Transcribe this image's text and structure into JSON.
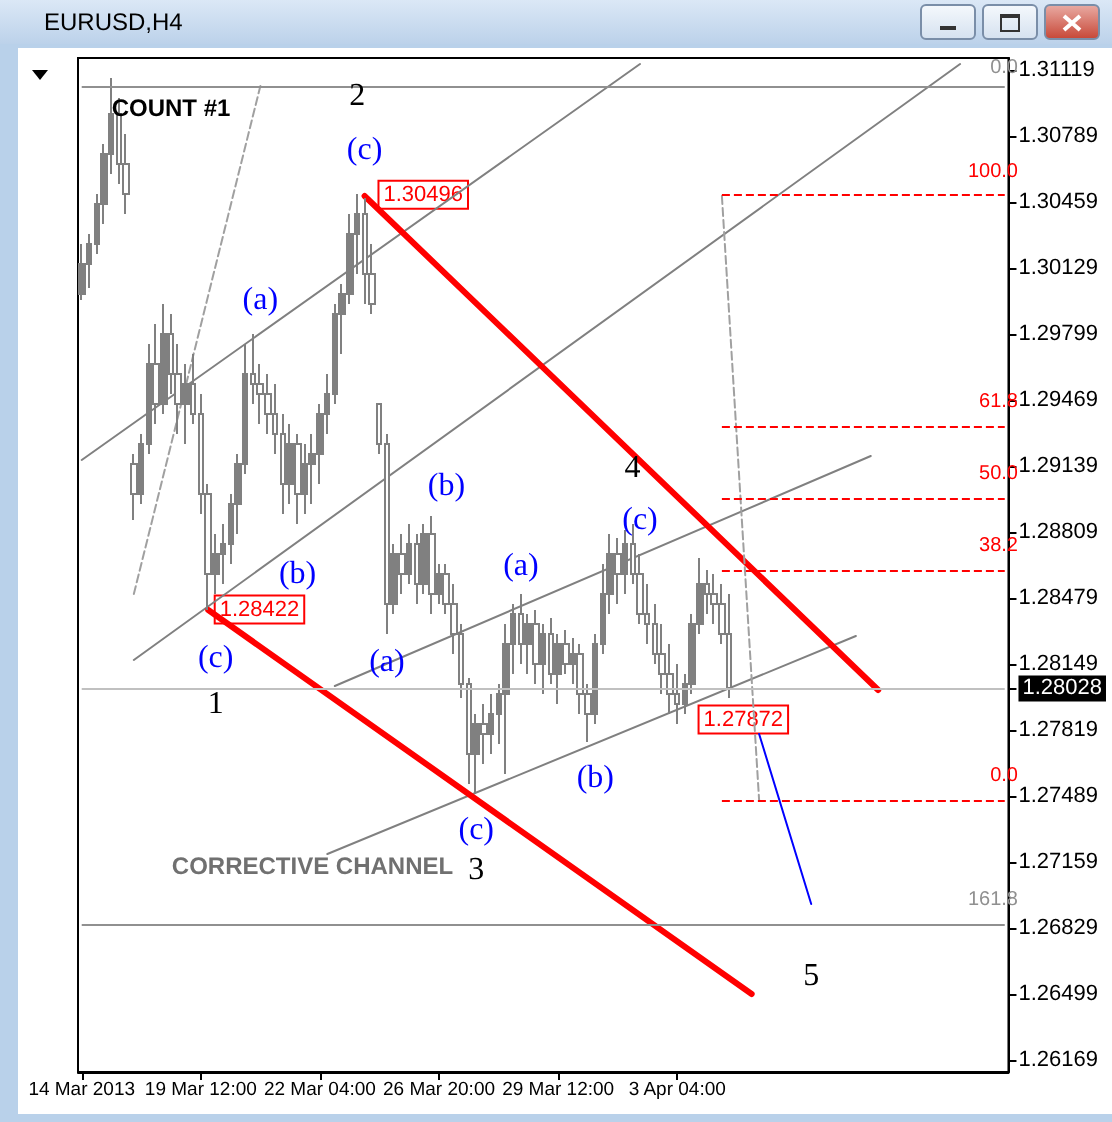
{
  "chart_data": {
    "type": "candlestick",
    "title": "EURUSD,H4",
    "color": "#808080",
    "categories": [
      "14 Mar 2013",
      null,
      null,
      null,
      null,
      null,
      null,
      null,
      null,
      null,
      null,
      null,
      null,
      null,
      null,
      null,
      "19 Mar 12:00",
      null,
      null,
      null,
      null,
      null,
      null,
      null,
      null,
      null,
      null,
      null,
      null,
      null,
      null,
      null,
      "22 Mar 04:00",
      null,
      null,
      null,
      null,
      null,
      null,
      null,
      null,
      null,
      null,
      null,
      null,
      null,
      null,
      null,
      "26 Mar 20:00",
      null,
      null,
      null,
      null,
      null,
      null,
      null,
      null,
      null,
      null,
      null,
      null,
      null,
      null,
      null,
      "29 Mar 12:00",
      null,
      null,
      null,
      null,
      null,
      null,
      null,
      null,
      null,
      null,
      null,
      null,
      null,
      null,
      null,
      "3 Apr 04:00",
      null,
      null,
      null,
      null,
      null,
      null,
      null,
      null,
      null,
      null,
      null,
      null,
      null,
      null,
      null,
      null,
      null,
      null,
      null,
      null,
      null,
      null,
      null,
      null,
      null,
      null,
      null,
      null,
      null,
      null,
      null,
      null,
      null,
      null,
      null,
      null,
      null,
      null,
      null,
      null,
      null,
      null,
      null,
      null
    ],
    "ohlc": [
      [
        1.3,
        1.3025,
        1.2997,
        1.3015
      ],
      [
        1.3015,
        1.303,
        1.3003,
        1.3025
      ],
      [
        1.3025,
        1.305,
        1.302,
        1.3045
      ],
      [
        1.3045,
        1.3075,
        1.3035,
        1.307
      ],
      [
        1.307,
        1.3108,
        1.306,
        1.309
      ],
      [
        1.309,
        1.3098,
        1.3055,
        1.3065
      ],
      [
        1.3065,
        1.308,
        1.304,
        1.305
      ],
      [
        1.2915,
        1.292,
        1.2887,
        1.29
      ],
      [
        1.29,
        1.293,
        1.2895,
        1.2925
      ],
      [
        1.2925,
        1.2975,
        1.292,
        1.2965
      ],
      [
        1.2965,
        1.2985,
        1.2935,
        1.2945
      ],
      [
        1.2945,
        1.2995,
        1.294,
        1.298
      ],
      [
        1.298,
        1.299,
        1.295,
        1.296
      ],
      [
        1.296,
        1.2975,
        1.293,
        1.2945
      ],
      [
        1.2945,
        1.2965,
        1.2925,
        1.2955
      ],
      [
        1.2955,
        1.297,
        1.2935,
        1.294
      ],
      [
        1.294,
        1.295,
        1.289,
        1.29
      ],
      [
        1.29,
        1.2905,
        1.2842,
        1.286
      ],
      [
        1.286,
        1.288,
        1.285,
        1.287
      ],
      [
        1.287,
        1.2885,
        1.2855,
        1.2875
      ],
      [
        1.2875,
        1.29,
        1.2865,
        1.2895
      ],
      [
        1.2895,
        1.292,
        1.288,
        1.2915
      ],
      [
        1.2915,
        1.2975,
        1.291,
        1.296
      ],
      [
        1.296,
        1.298,
        1.2945,
        1.2955
      ],
      [
        1.2955,
        1.2965,
        1.2935,
        1.295
      ],
      [
        1.295,
        1.296,
        1.293,
        1.294
      ],
      [
        1.294,
        1.2955,
        1.292,
        1.293
      ],
      [
        1.293,
        1.294,
        1.289,
        1.2905
      ],
      [
        1.2905,
        1.2935,
        1.2895,
        1.2925
      ],
      [
        1.2925,
        1.293,
        1.2885,
        1.29
      ],
      [
        1.29,
        1.2925,
        1.289,
        1.2915
      ],
      [
        1.2915,
        1.293,
        1.2895,
        1.292
      ],
      [
        1.292,
        1.2945,
        1.2905,
        1.294
      ],
      [
        1.294,
        1.296,
        1.293,
        1.295
      ],
      [
        1.295,
        1.2995,
        1.2945,
        1.299
      ],
      [
        1.299,
        1.3005,
        1.297,
        1.3
      ],
      [
        1.3,
        1.304,
        1.2995,
        1.303
      ],
      [
        1.303,
        1.305,
        1.301,
        1.304
      ],
      [
        1.304,
        1.3048,
        1.2995,
        1.301
      ],
      [
        1.301,
        1.3025,
        1.299,
        1.2995
      ],
      [
        1.2945,
        1.2945,
        1.292,
        1.2925
      ],
      [
        1.2925,
        1.293,
        1.283,
        1.2845
      ],
      [
        1.2845,
        1.2875,
        1.284,
        1.287
      ],
      [
        1.287,
        1.288,
        1.285,
        1.286
      ],
      [
        1.286,
        1.2885,
        1.2855,
        1.2875
      ],
      [
        1.2875,
        1.288,
        1.2845,
        1.2855
      ],
      [
        1.2855,
        1.2885,
        1.285,
        1.288
      ],
      [
        1.288,
        1.2889,
        1.284,
        1.285
      ],
      [
        1.285,
        1.2865,
        1.2845,
        1.286
      ],
      [
        1.286,
        1.2865,
        1.284,
        1.2845
      ],
      [
        1.2845,
        1.2855,
        1.282,
        1.283
      ],
      [
        1.283,
        1.2835,
        1.2798,
        1.2805
      ],
      [
        1.2805,
        1.2808,
        1.2755,
        1.277
      ],
      [
        1.277,
        1.279,
        1.275,
        1.2785
      ],
      [
        1.2785,
        1.2795,
        1.2765,
        1.278
      ],
      [
        1.278,
        1.28,
        1.277,
        1.279
      ],
      [
        1.279,
        1.2805,
        1.2775,
        1.28
      ],
      [
        1.28,
        1.2835,
        1.276,
        1.2825
      ],
      [
        1.2825,
        1.2845,
        1.281,
        1.284
      ],
      [
        1.284,
        1.285,
        1.2815,
        1.2825
      ],
      [
        1.2825,
        1.284,
        1.281,
        1.2835
      ],
      [
        1.2835,
        1.2842,
        1.2805,
        1.2815
      ],
      [
        1.2815,
        1.2835,
        1.28,
        1.283
      ],
      [
        1.283,
        1.2838,
        1.2805,
        1.281
      ],
      [
        1.281,
        1.283,
        1.2795,
        1.2825
      ],
      [
        1.2825,
        1.2832,
        1.281,
        1.2815
      ],
      [
        1.2815,
        1.2828,
        1.2805,
        1.282
      ],
      [
        1.282,
        1.2825,
        1.279,
        1.28
      ],
      [
        1.28,
        1.2805,
        1.2776,
        1.279
      ],
      [
        1.279,
        1.283,
        1.2785,
        1.2825
      ],
      [
        1.2825,
        1.2865,
        1.282,
        1.285
      ],
      [
        1.285,
        1.288,
        1.284,
        1.287
      ],
      [
        1.287,
        1.2878,
        1.2845,
        1.286
      ],
      [
        1.286,
        1.2882,
        1.285,
        1.2875
      ],
      [
        1.2875,
        1.2885,
        1.2855,
        1.286
      ],
      [
        1.286,
        1.287,
        1.2835,
        1.284
      ],
      [
        1.284,
        1.2855,
        1.2825,
        1.2835
      ],
      [
        1.2835,
        1.2845,
        1.2815,
        1.282
      ],
      [
        1.282,
        1.2835,
        1.28,
        1.281
      ],
      [
        1.281,
        1.2825,
        1.279,
        1.28
      ],
      [
        1.28,
        1.2815,
        1.2785,
        1.2795
      ],
      [
        1.2795,
        1.281,
        1.279,
        1.2805
      ],
      [
        1.2805,
        1.284,
        1.28,
        1.2835
      ],
      [
        1.2835,
        1.2868,
        1.283,
        1.2855
      ],
      [
        1.2855,
        1.2862,
        1.284,
        1.285
      ],
      [
        1.285,
        1.286,
        1.2835,
        1.2845
      ],
      [
        1.2845,
        1.2855,
        1.2825,
        1.283
      ],
      [
        1.283,
        1.285,
        1.2798,
        1.2803
      ],
      null,
      null,
      null,
      null,
      null,
      null,
      null,
      null,
      null,
      null,
      null,
      null,
      null,
      null,
      null,
      null,
      null,
      null,
      null,
      null,
      null,
      null,
      null,
      null,
      null,
      null,
      null,
      null,
      null,
      null,
      null,
      null,
      null,
      null,
      null,
      null,
      null
    ],
    "series": [
      {
        "type": "line",
        "color": "#808080",
        "line_style": "solid",
        "values": [
          1.2917,
          null,
          null,
          null,
          null,
          null,
          null,
          null,
          null,
          null,
          null,
          null,
          null,
          null,
          null,
          null,
          null,
          null,
          null,
          null,
          null,
          null,
          null,
          null,
          null,
          null,
          null,
          null,
          null,
          null,
          null,
          null,
          null,
          null,
          null,
          null,
          null,
          null,
          null,
          null,
          null,
          null,
          null,
          null,
          null,
          null,
          null,
          null,
          null,
          null,
          null,
          null,
          null,
          null,
          null,
          null,
          null,
          null,
          null,
          null,
          null,
          null,
          null,
          null,
          null,
          null,
          null,
          null,
          null,
          null,
          null,
          null,
          null,
          null,
          null,
          1.3115,
          null,
          null,
          null,
          null,
          null,
          null,
          null,
          null,
          null,
          null,
          null,
          null,
          null,
          null,
          null,
          null,
          null,
          null,
          null,
          null,
          null,
          null,
          null,
          null,
          null,
          null,
          null,
          null,
          null,
          null,
          null,
          null,
          null,
          null,
          null,
          null,
          null,
          null,
          null,
          null,
          null,
          null,
          null,
          null,
          null,
          null,
          null,
          null,
          null
        ]
      },
      {
        "type": "line",
        "color": "#808080",
        "line_style": "solid",
        "values": [
          null,
          null,
          null,
          null,
          null,
          null,
          null,
          1.2817,
          null,
          null,
          null,
          null,
          null,
          null,
          null,
          null,
          null,
          null,
          null,
          null,
          null,
          null,
          null,
          null,
          null,
          null,
          null,
          null,
          null,
          null,
          null,
          null,
          null,
          null,
          null,
          null,
          null,
          null,
          null,
          null,
          null,
          null,
          null,
          null,
          null,
          null,
          null,
          null,
          null,
          null,
          null,
          null,
          null,
          null,
          null,
          null,
          null,
          null,
          null,
          null,
          null,
          null,
          null,
          null,
          null,
          null,
          null,
          null,
          null,
          null,
          null,
          null,
          null,
          null,
          null,
          null,
          null,
          null,
          null,
          null,
          null,
          null,
          null,
          null,
          null,
          null,
          null,
          null,
          null,
          null,
          null,
          null,
          null,
          null,
          null,
          null,
          null,
          null,
          null,
          null,
          null,
          null,
          null,
          null,
          null,
          null,
          null,
          null,
          null,
          null,
          null,
          null,
          null,
          null,
          null,
          null,
          null,
          null,
          1.3115,
          null,
          null,
          null,
          null,
          null,
          null
        ]
      },
      {
        "type": "line",
        "color": "#808080",
        "line_style": "solid",
        "values": [
          null,
          null,
          null,
          null,
          null,
          null,
          null,
          null,
          null,
          null,
          null,
          null,
          null,
          null,
          null,
          null,
          null,
          null,
          null,
          null,
          null,
          null,
          null,
          null,
          null,
          null,
          null,
          null,
          null,
          null,
          null,
          null,
          null,
          null,
          1.2804,
          null,
          null,
          null,
          null,
          null,
          null,
          null,
          null,
          null,
          null,
          null,
          null,
          null,
          null,
          null,
          null,
          null,
          null,
          null,
          null,
          null,
          null,
          null,
          null,
          null,
          null,
          null,
          null,
          null,
          null,
          null,
          null,
          null,
          null,
          null,
          null,
          null,
          null,
          null,
          null,
          null,
          null,
          null,
          null,
          null,
          null,
          null,
          null,
          null,
          null,
          null,
          null,
          null,
          null,
          null,
          null,
          null,
          null,
          null,
          null,
          null,
          null,
          null,
          null,
          null,
          null,
          null,
          null,
          null,
          null,
          null,
          1.2919,
          null,
          null,
          null,
          null,
          null,
          null,
          null,
          null,
          null,
          null,
          null,
          null,
          null,
          null,
          null,
          null,
          null,
          null
        ]
      },
      {
        "type": "line",
        "color": "#808080",
        "line_style": "solid",
        "values": [
          null,
          null,
          null,
          null,
          null,
          null,
          null,
          null,
          null,
          null,
          null,
          null,
          null,
          null,
          null,
          null,
          null,
          null,
          null,
          null,
          null,
          null,
          null,
          null,
          null,
          null,
          null,
          null,
          null,
          null,
          null,
          null,
          null,
          1.272,
          null,
          null,
          null,
          null,
          null,
          null,
          null,
          null,
          null,
          null,
          null,
          null,
          null,
          null,
          null,
          null,
          null,
          null,
          null,
          null,
          null,
          null,
          null,
          null,
          null,
          null,
          null,
          null,
          null,
          null,
          null,
          null,
          null,
          null,
          null,
          null,
          null,
          null,
          null,
          null,
          null,
          null,
          null,
          null,
          null,
          null,
          null,
          null,
          null,
          null,
          null,
          null,
          null,
          null,
          null,
          null,
          null,
          null,
          null,
          null,
          null,
          null,
          null,
          null,
          null,
          null,
          null,
          null,
          null,
          null,
          1.2829,
          null,
          null,
          null,
          null,
          null,
          null,
          null,
          null,
          null,
          null,
          null,
          null,
          null,
          null,
          null,
          null,
          null,
          null,
          null,
          null
        ]
      },
      {
        "type": "line",
        "color": "#ff0000",
        "line_style": "solid",
        "values": [
          null,
          null,
          null,
          null,
          null,
          null,
          null,
          null,
          null,
          null,
          null,
          null,
          null,
          null,
          null,
          null,
          null,
          null,
          null,
          null,
          null,
          null,
          null,
          null,
          null,
          null,
          null,
          null,
          null,
          null,
          null,
          null,
          null,
          null,
          null,
          null,
          null,
          null,
          1.3049,
          null,
          null,
          null,
          null,
          null,
          null,
          null,
          null,
          null,
          null,
          null,
          null,
          null,
          null,
          null,
          null,
          null,
          null,
          null,
          null,
          null,
          null,
          null,
          null,
          null,
          null,
          null,
          null,
          null,
          null,
          null,
          null,
          null,
          null,
          null,
          null,
          null,
          null,
          null,
          null,
          null,
          null,
          null,
          null,
          null,
          null,
          null,
          null,
          null,
          null,
          null,
          null,
          null,
          null,
          null,
          null,
          null,
          null,
          null,
          null,
          null,
          null,
          null,
          null,
          null,
          null,
          null,
          null,
          1.2802,
          null,
          null,
          null,
          null,
          null,
          null,
          null,
          null,
          null,
          null,
          null,
          null,
          null,
          null,
          null,
          null,
          null
        ]
      },
      {
        "type": "line",
        "color": "#ff0000",
        "line_style": "solid",
        "values": [
          null,
          null,
          null,
          null,
          null,
          null,
          null,
          null,
          null,
          null,
          null,
          null,
          null,
          null,
          null,
          null,
          null,
          1.2842,
          null,
          null,
          null,
          null,
          null,
          null,
          null,
          null,
          null,
          null,
          null,
          null,
          null,
          null,
          null,
          null,
          null,
          null,
          null,
          null,
          null,
          null,
          null,
          null,
          null,
          null,
          null,
          null,
          null,
          null,
          null,
          null,
          null,
          null,
          null,
          null,
          null,
          null,
          null,
          null,
          null,
          null,
          null,
          null,
          null,
          null,
          null,
          null,
          null,
          null,
          null,
          null,
          null,
          null,
          null,
          null,
          null,
          null,
          null,
          null,
          null,
          null,
          null,
          null,
          null,
          null,
          null,
          null,
          null,
          null,
          null,
          null,
          1.265,
          null,
          null,
          null,
          null,
          null,
          null,
          null,
          null,
          null,
          null,
          null,
          null,
          null,
          null,
          null,
          null,
          null,
          null,
          null,
          null,
          null,
          null,
          null,
          null,
          null,
          null,
          null,
          null,
          null,
          null,
          null,
          null,
          null,
          null
        ]
      },
      {
        "type": "line",
        "color": "#a0a0a0",
        "line_style": "dashed",
        "values": [
          null,
          null,
          null,
          null,
          null,
          null,
          null,
          1.285,
          null,
          null,
          null,
          null,
          null,
          null,
          null,
          null,
          null,
          null,
          null,
          null,
          null,
          null,
          null,
          null,
          1.3104,
          null,
          null,
          null,
          null,
          null,
          null,
          null,
          null,
          null,
          null,
          null,
          null,
          null,
          null,
          null,
          null,
          null,
          null,
          null,
          null,
          null,
          null,
          null,
          null,
          null,
          null,
          null,
          null,
          null,
          null,
          null,
          null,
          null,
          null,
          null,
          null,
          null,
          null,
          null,
          null,
          null,
          null,
          null,
          null,
          null,
          null,
          null,
          null,
          null,
          null,
          null,
          null,
          null,
          null,
          null,
          null,
          null,
          null,
          null,
          null,
          null,
          null,
          null,
          null,
          null,
          null,
          null,
          null,
          null,
          null,
          null,
          null,
          null,
          null,
          null,
          null,
          null,
          null,
          null,
          null,
          null,
          null,
          null,
          null,
          null,
          null,
          null,
          null,
          null,
          null,
          null,
          null,
          null,
          null,
          null,
          null,
          null,
          null,
          null,
          null
        ]
      },
      {
        "type": "line",
        "color": "#a0a0a0",
        "line_style": "dashed",
        "values": [
          null,
          null,
          null,
          null,
          null,
          null,
          null,
          null,
          null,
          null,
          null,
          null,
          null,
          null,
          null,
          null,
          null,
          null,
          null,
          null,
          null,
          null,
          null,
          null,
          null,
          null,
          null,
          null,
          null,
          null,
          null,
          null,
          null,
          null,
          null,
          null,
          null,
          null,
          null,
          null,
          null,
          null,
          null,
          null,
          null,
          null,
          null,
          null,
          null,
          null,
          null,
          null,
          null,
          null,
          null,
          null,
          null,
          null,
          null,
          null,
          null,
          null,
          null,
          null,
          null,
          null,
          null,
          null,
          null,
          null,
          null,
          null,
          null,
          null,
          null,
          null,
          null,
          null,
          null,
          null,
          null,
          null,
          null,
          null,
          null,
          null,
          1.3049,
          null,
          null,
          null,
          null,
          1.2747,
          null,
          null,
          null,
          null,
          null,
          null,
          null,
          null,
          null,
          null,
          null,
          null,
          null,
          null,
          null,
          null,
          null,
          null,
          null,
          null,
          null,
          null,
          null,
          null,
          null,
          null,
          null,
          null,
          null,
          null,
          null,
          null,
          null
        ]
      },
      {
        "type": "line",
        "color": "#0000ff",
        "line_style": "solid",
        "values": [
          null,
          null,
          null,
          null,
          null,
          null,
          null,
          null,
          null,
          null,
          null,
          null,
          null,
          null,
          null,
          null,
          null,
          null,
          null,
          null,
          null,
          null,
          null,
          null,
          null,
          null,
          null,
          null,
          null,
          null,
          null,
          null,
          null,
          null,
          null,
          null,
          null,
          null,
          null,
          null,
          null,
          null,
          null,
          null,
          null,
          null,
          null,
          null,
          null,
          null,
          null,
          null,
          null,
          null,
          null,
          null,
          null,
          null,
          null,
          null,
          null,
          null,
          null,
          null,
          null,
          null,
          null,
          null,
          null,
          null,
          null,
          null,
          null,
          null,
          null,
          null,
          null,
          null,
          null,
          null,
          null,
          null,
          null,
          null,
          null,
          null,
          null,
          null,
          null,
          null,
          null,
          1.278,
          null,
          null,
          null,
          null,
          null,
          null,
          1.2695,
          null,
          null,
          null,
          null,
          null,
          null,
          null,
          null,
          null,
          null,
          null,
          null,
          null,
          null,
          null,
          null,
          null,
          null,
          null,
          null,
          null,
          null,
          null,
          null,
          null,
          null
        ]
      }
    ],
    "ylim": [
      1.2611,
      1.3118
    ],
    "yticks": [
      1.31119,
      1.30789,
      1.30459,
      1.30129,
      1.29799,
      1.29469,
      1.29139,
      1.28809,
      1.28479,
      1.28149,
      {
        "value": 1.28028,
        "label": "1.28028"
      },
      1.27819,
      1.27489,
      1.27159,
      1.26829,
      1.26499,
      1.26169
    ],
    "ref_lines": [
      {
        "axis": "y",
        "value": 1.30496,
        "color": "#ff0000",
        "line_style": "dashed"
      },
      {
        "axis": "y",
        "value": 1.2934,
        "color": "#ff0000",
        "line_style": "dashed"
      },
      {
        "axis": "y",
        "value": 1.2898,
        "color": "#ff0000",
        "line_style": "dashed"
      },
      {
        "axis": "y",
        "value": 1.2862,
        "color": "#ff0000",
        "line_style": "dashed"
      },
      {
        "axis": "y",
        "value": 1.2747,
        "color": "#ff0000",
        "line_style": "dashed"
      },
      {
        "axis": "y",
        "value": 1.3104,
        "color": "#909090",
        "line_style": "solid"
      },
      {
        "axis": "y",
        "value": 1.2685,
        "color": "#909090",
        "line_style": "solid"
      },
      {
        "axis": "y",
        "value": 1.28028,
        "color": "#c0c0c0",
        "line_style": "solid"
      }
    ],
    "annotations": [
      "(c)",
      "(a)",
      "(b)",
      "(c)",
      "(a)",
      "(b)",
      "(c)",
      "(a)",
      "(b)",
      "(c)",
      "2",
      "1",
      "3",
      "4",
      "5",
      "1.30496",
      "1.28422",
      "1.27872",
      "COUNT #1",
      "CORRECTIVE CHANNEL",
      "100.0",
      "61.8",
      "50.0",
      "38.2",
      "0.0",
      "0.0",
      "161.8"
    ]
  }
}
